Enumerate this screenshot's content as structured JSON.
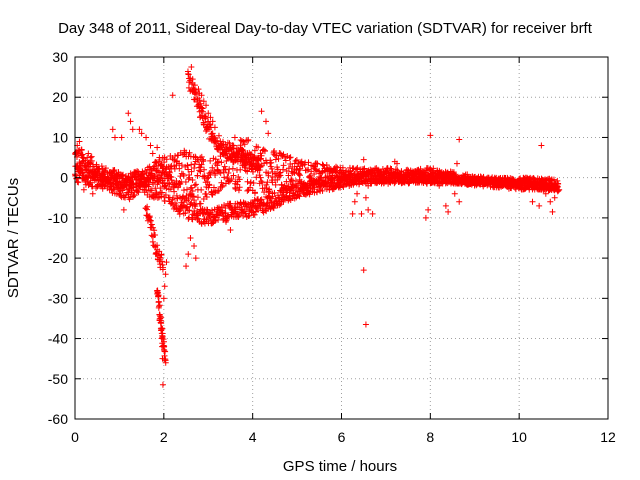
{
  "chart_data": {
    "type": "scatter",
    "title": "Day 348 of 2011, Sidereal Day-to-day VTEC variation (SDTVAR) for receiver brft",
    "xlabel": "GPS time / hours",
    "ylabel": "SDTVAR / TECUs",
    "xlim": [
      0,
      12
    ],
    "ylim": [
      -60,
      30
    ],
    "xticks": [
      0,
      2,
      4,
      6,
      8,
      10,
      12
    ],
    "yticks": [
      -60,
      -50,
      -40,
      -30,
      -20,
      -10,
      0,
      10,
      20,
      30
    ],
    "grid": true,
    "marker": "+",
    "color": "#ff0000",
    "bands": [
      {
        "x": [
          0.0,
          0.3,
          0.6,
          0.9,
          1.2,
          1.5,
          1.8,
          2.1,
          2.4,
          2.7,
          3.0,
          3.3,
          3.6,
          3.9,
          4.2,
          4.6,
          5.0,
          5.5,
          6.0,
          6.5,
          7.0,
          7.5,
          8.0,
          8.5,
          9.0,
          9.5,
          10.0,
          10.5,
          10.9
        ],
        "center": [
          5,
          3,
          1,
          0,
          -1,
          0,
          1,
          2,
          1,
          0,
          0,
          2,
          3,
          3,
          2,
          1.5,
          1,
          0.5,
          0.5,
          0.5,
          0.5,
          0.5,
          0.5,
          0,
          -0.5,
          -1,
          -1,
          -1.5,
          -2
        ],
        "spread": [
          3,
          3,
          2,
          2,
          2,
          2,
          3,
          4,
          6,
          6,
          5,
          5,
          6,
          7,
          6,
          5,
          4,
          3,
          2,
          2,
          2,
          1.5,
          2,
          1.5,
          1,
          1,
          1,
          1.5,
          1.5
        ]
      },
      {
        "x": [
          0.0,
          0.3,
          0.6,
          0.9,
          1.2,
          1.5,
          1.8,
          2.1,
          2.4,
          2.7,
          3.0,
          3.3,
          3.6,
          3.9,
          4.2,
          4.6,
          5.0,
          5.5,
          6.0,
          6.5,
          7.0,
          7.5,
          8.0,
          8.5,
          9.0,
          9.5,
          10.0,
          10.5,
          10.9
        ],
        "center": [
          1,
          0,
          -1,
          -2,
          -3,
          -2,
          -1,
          -3,
          -6,
          -8,
          -10,
          -9,
          -8,
          -8,
          -7,
          -5,
          -3,
          -2,
          -1,
          0,
          0,
          0,
          0,
          -0.5,
          -1,
          -1.5,
          -2,
          -2,
          -2.5
        ],
        "spread": [
          2,
          2,
          2,
          2,
          3,
          3,
          4,
          4,
          4,
          3,
          2,
          2,
          2,
          2,
          2,
          2,
          2,
          1.5,
          1.5,
          1.5,
          1.5,
          1.5,
          1.5,
          1,
          1,
          1,
          1,
          1,
          1
        ]
      },
      {
        "x": [
          1.6,
          1.7,
          1.8,
          1.9,
          2.0
        ],
        "center": [
          -8,
          -12,
          -16,
          -20,
          -22
        ],
        "spread": [
          2,
          2,
          2,
          2,
          2
        ]
      },
      {
        "x": [
          2.55,
          2.7,
          2.85,
          3.0,
          3.2,
          3.4,
          3.6,
          3.8,
          4.0,
          4.2
        ],
        "center": [
          25,
          20,
          16,
          12,
          9,
          7,
          6,
          5,
          4,
          3
        ],
        "spread": [
          2,
          2,
          2,
          2,
          2,
          2,
          2,
          2,
          2,
          2
        ]
      },
      {
        "x": [
          1.85,
          1.9,
          1.95,
          2.0,
          2.05
        ],
        "center": [
          -28,
          -33,
          -38,
          -42,
          -47
        ],
        "spread": [
          1.5,
          1.5,
          1.5,
          1.5,
          1.5
        ]
      }
    ],
    "points": [
      [
        1.98,
        -51.5
      ],
      [
        1.97,
        -45
      ],
      [
        1.96,
        -42
      ],
      [
        1.95,
        -40
      ],
      [
        1.94,
        -38
      ],
      [
        1.93,
        -36
      ],
      [
        1.92,
        -35
      ],
      [
        2.0,
        -30
      ],
      [
        2.02,
        -27
      ],
      [
        2.04,
        -24
      ],
      [
        2.06,
        -21
      ],
      [
        2.2,
        20.5
      ],
      [
        2.62,
        27.5
      ],
      [
        2.65,
        24.5
      ],
      [
        2.7,
        23
      ],
      [
        2.78,
        22
      ],
      [
        2.8,
        21
      ],
      [
        2.85,
        20.5
      ],
      [
        2.9,
        19
      ],
      [
        3.0,
        16
      ],
      [
        2.95,
        18
      ],
      [
        3.05,
        15
      ],
      [
        3.1,
        14
      ],
      [
        3.15,
        12.5
      ],
      [
        4.2,
        16.5
      ],
      [
        4.3,
        14
      ],
      [
        4.35,
        11
      ],
      [
        3.6,
        10
      ],
      [
        3.3,
        8
      ],
      [
        3.5,
        -13
      ],
      [
        3.4,
        -11
      ],
      [
        2.5,
        -22
      ],
      [
        2.55,
        -19
      ],
      [
        2.6,
        -15
      ],
      [
        2.68,
        -17
      ],
      [
        2.72,
        -20
      ],
      [
        1.2,
        16
      ],
      [
        1.25,
        14
      ],
      [
        1.3,
        12
      ],
      [
        0.85,
        12
      ],
      [
        0.9,
        10
      ],
      [
        1.05,
        10
      ],
      [
        1.1,
        -8
      ],
      [
        1.45,
        12
      ],
      [
        1.5,
        11
      ],
      [
        1.6,
        10
      ],
      [
        1.7,
        8
      ],
      [
        1.75,
        6
      ],
      [
        1.85,
        7.5
      ],
      [
        1.9,
        5
      ],
      [
        0.05,
        8
      ],
      [
        0.1,
        9
      ],
      [
        0.15,
        7
      ],
      [
        0.3,
        6
      ],
      [
        0.2,
        -3
      ],
      [
        0.4,
        -4
      ],
      [
        0.5,
        -2
      ],
      [
        6.5,
        -23
      ],
      [
        6.55,
        -36.5
      ],
      [
        6.5,
        4.5
      ],
      [
        6.6,
        -8
      ],
      [
        6.45,
        -9
      ],
      [
        6.3,
        -6
      ],
      [
        6.25,
        -9
      ],
      [
        6.35,
        -4
      ],
      [
        6.7,
        -9
      ],
      [
        6.6,
        -2
      ],
      [
        6.55,
        -5
      ],
      [
        7.2,
        4
      ],
      [
        7.25,
        3.5
      ],
      [
        8.0,
        10.5
      ],
      [
        8.65,
        9.5
      ],
      [
        8.6,
        3.5
      ],
      [
        8.4,
        -8.5
      ],
      [
        8.35,
        -7
      ],
      [
        7.9,
        -10
      ],
      [
        7.95,
        -8
      ],
      [
        8.65,
        -6
      ],
      [
        8.55,
        -4
      ],
      [
        8.2,
        -2
      ],
      [
        10.5,
        8
      ],
      [
        10.45,
        -7
      ],
      [
        10.3,
        -6
      ],
      [
        10.7,
        -6
      ],
      [
        10.75,
        -8.5
      ],
      [
        10.8,
        -5
      ],
      [
        10.9,
        -3
      ],
      [
        10.2,
        -2
      ],
      [
        10.6,
        -4
      ]
    ]
  }
}
